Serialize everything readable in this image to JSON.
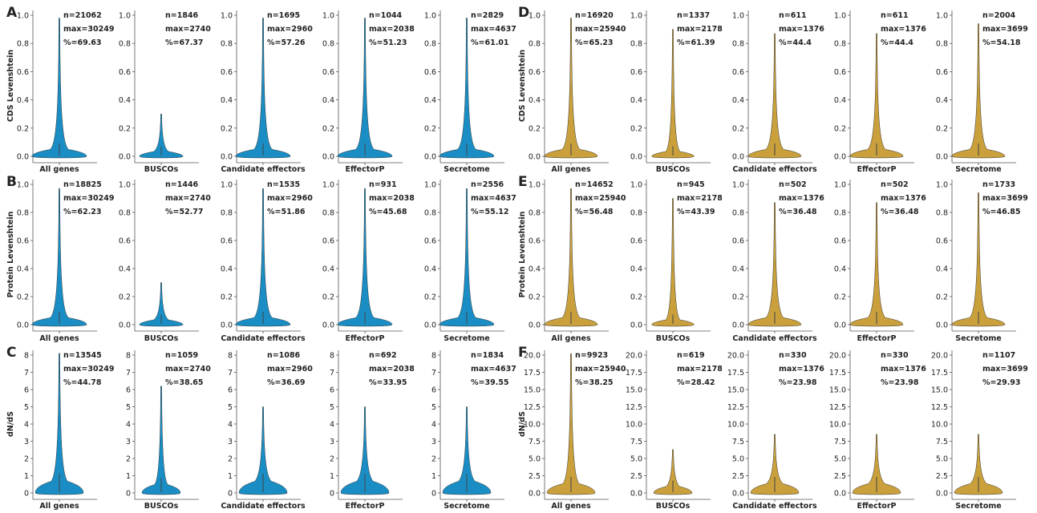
{
  "chart_data": [
    {
      "type": "violin",
      "panel_label": "A",
      "ylabel": "CDS Levenshtein",
      "ylim": [
        0,
        1.0
      ],
      "yticks": [
        "0.0",
        "0.2",
        "0.4",
        "0.6",
        "0.8",
        "1.0"
      ],
      "color": "#1a8ec4",
      "categories": [
        "All genes",
        "BUSCOs",
        "Candidate effectors",
        "EffectorP",
        "Secretome"
      ],
      "stats": [
        {
          "n": "n=21062",
          "max": "max=30249",
          "pct": "%=69.63"
        },
        {
          "n": "n=1846",
          "max": "max=2740",
          "pct": "%=67.37"
        },
        {
          "n": "n=1695",
          "max": "max=2960",
          "pct": "%=57.26"
        },
        {
          "n": "n=1044",
          "max": "max=2038",
          "pct": "%=51.23"
        },
        {
          "n": "n=2829",
          "max": "max=4637",
          "pct": "%=61.01"
        }
      ],
      "violin_top": [
        0.98,
        0.3,
        0.98,
        0.98,
        0.98
      ]
    },
    {
      "type": "violin",
      "panel_label": "B",
      "ylabel": "Protein Levenshtein",
      "ylim": [
        0,
        1.0
      ],
      "yticks": [
        "0.0",
        "0.2",
        "0.4",
        "0.6",
        "0.8",
        "1.0"
      ],
      "color": "#1a8ec4",
      "categories": [
        "All genes",
        "BUSCOs",
        "Candidate effectors",
        "EffectorP",
        "Secretome"
      ],
      "stats": [
        {
          "n": "n=18825",
          "max": "max=30249",
          "pct": "%=62.23"
        },
        {
          "n": "n=1446",
          "max": "max=2740",
          "pct": "%=52.77"
        },
        {
          "n": "n=1535",
          "max": "max=2960",
          "pct": "%=51.86"
        },
        {
          "n": "n=931",
          "max": "max=2038",
          "pct": "%=45.68"
        },
        {
          "n": "n=2556",
          "max": "max=4637",
          "pct": "%=55.12"
        }
      ],
      "violin_top": [
        0.97,
        0.3,
        0.97,
        0.97,
        0.97
      ]
    },
    {
      "type": "violin",
      "panel_label": "C",
      "ylabel": "dN/dS",
      "ylim": [
        0,
        8
      ],
      "yticks": [
        "0",
        "1",
        "2",
        "3",
        "4",
        "5",
        "6",
        "7",
        "8"
      ],
      "color": "#1a8ec4",
      "categories": [
        "All genes",
        "BUSCOs",
        "Candidate effectors",
        "EffectorP",
        "Secretome"
      ],
      "stats": [
        {
          "n": "n=13545",
          "max": "max=30249",
          "pct": "%=44.78"
        },
        {
          "n": "n=1059",
          "max": "max=2740",
          "pct": "%=38.65"
        },
        {
          "n": "n=1086",
          "max": "max=2960",
          "pct": "%=36.69"
        },
        {
          "n": "n=692",
          "max": "max=2038",
          "pct": "%=33.95"
        },
        {
          "n": "n=1834",
          "max": "max=4637",
          "pct": "%=39.55"
        }
      ],
      "violin_top": [
        8.1,
        6.2,
        5.0,
        5.0,
        5.0
      ]
    },
    {
      "type": "violin",
      "panel_label": "D",
      "ylabel": "CDS Levenshtein",
      "ylim": [
        0,
        1.0
      ],
      "yticks": [
        "0.0",
        "0.2",
        "0.4",
        "0.6",
        "0.8",
        "1.0"
      ],
      "color": "#c9a03c",
      "categories": [
        "All genes",
        "BUSCOs",
        "Candidate effectors",
        "EffectorP",
        "Secretome"
      ],
      "stats": [
        {
          "n": "n=16920",
          "max": "max=25940",
          "pct": "%=65.23"
        },
        {
          "n": "n=1337",
          "max": "max=2178",
          "pct": "%=61.39"
        },
        {
          "n": "n=611",
          "max": "max=1376",
          "pct": "%=44.4"
        },
        {
          "n": "n=611",
          "max": "max=1376",
          "pct": "%=44.4"
        },
        {
          "n": "n=2004",
          "max": "max=3699",
          "pct": "%=54.18"
        }
      ],
      "violin_top": [
        0.98,
        0.9,
        0.87,
        0.87,
        0.94
      ]
    },
    {
      "type": "violin",
      "panel_label": "E",
      "ylabel": "Protein Levenshtein",
      "ylim": [
        0,
        1.0
      ],
      "yticks": [
        "0.0",
        "0.2",
        "0.4",
        "0.6",
        "0.8",
        "1.0"
      ],
      "color": "#c9a03c",
      "categories": [
        "All genes",
        "BUSCOs",
        "Candidate effectors",
        "EffectorP",
        "Secretome"
      ],
      "stats": [
        {
          "n": "n=14652",
          "max": "max=25940",
          "pct": "%=56.48"
        },
        {
          "n": "n=945",
          "max": "max=2178",
          "pct": "%=43.39"
        },
        {
          "n": "n=502",
          "max": "max=1376",
          "pct": "%=36.48"
        },
        {
          "n": "n=502",
          "max": "max=1376",
          "pct": "%=36.48"
        },
        {
          "n": "n=1733",
          "max": "max=3699",
          "pct": "%=46.85"
        }
      ],
      "violin_top": [
        0.97,
        0.9,
        0.87,
        0.87,
        0.94
      ]
    },
    {
      "type": "violin",
      "panel_label": "F",
      "ylabel": "dN/dS",
      "ylim": [
        0,
        20.0
      ],
      "yticks": [
        "0.0",
        "2.5",
        "5.0",
        "7.5",
        "10.0",
        "12.5",
        "15.0",
        "17.5",
        "20.0"
      ],
      "color": "#c9a03c",
      "categories": [
        "All genes",
        "BUSCOs",
        "Candidate effectors",
        "EffectorP",
        "Secretome"
      ],
      "stats": [
        {
          "n": "n=9923",
          "max": "max=25940",
          "pct": "%=38.25"
        },
        {
          "n": "n=619",
          "max": "max=2178",
          "pct": "%=28.42"
        },
        {
          "n": "n=330",
          "max": "max=1376",
          "pct": "%=23.98"
        },
        {
          "n": "n=330",
          "max": "max=1376",
          "pct": "%=23.98"
        },
        {
          "n": "n=1107",
          "max": "max=3699",
          "pct": "%=29.93"
        }
      ],
      "violin_top": [
        20.2,
        6.3,
        8.5,
        8.5,
        8.5
      ]
    }
  ]
}
